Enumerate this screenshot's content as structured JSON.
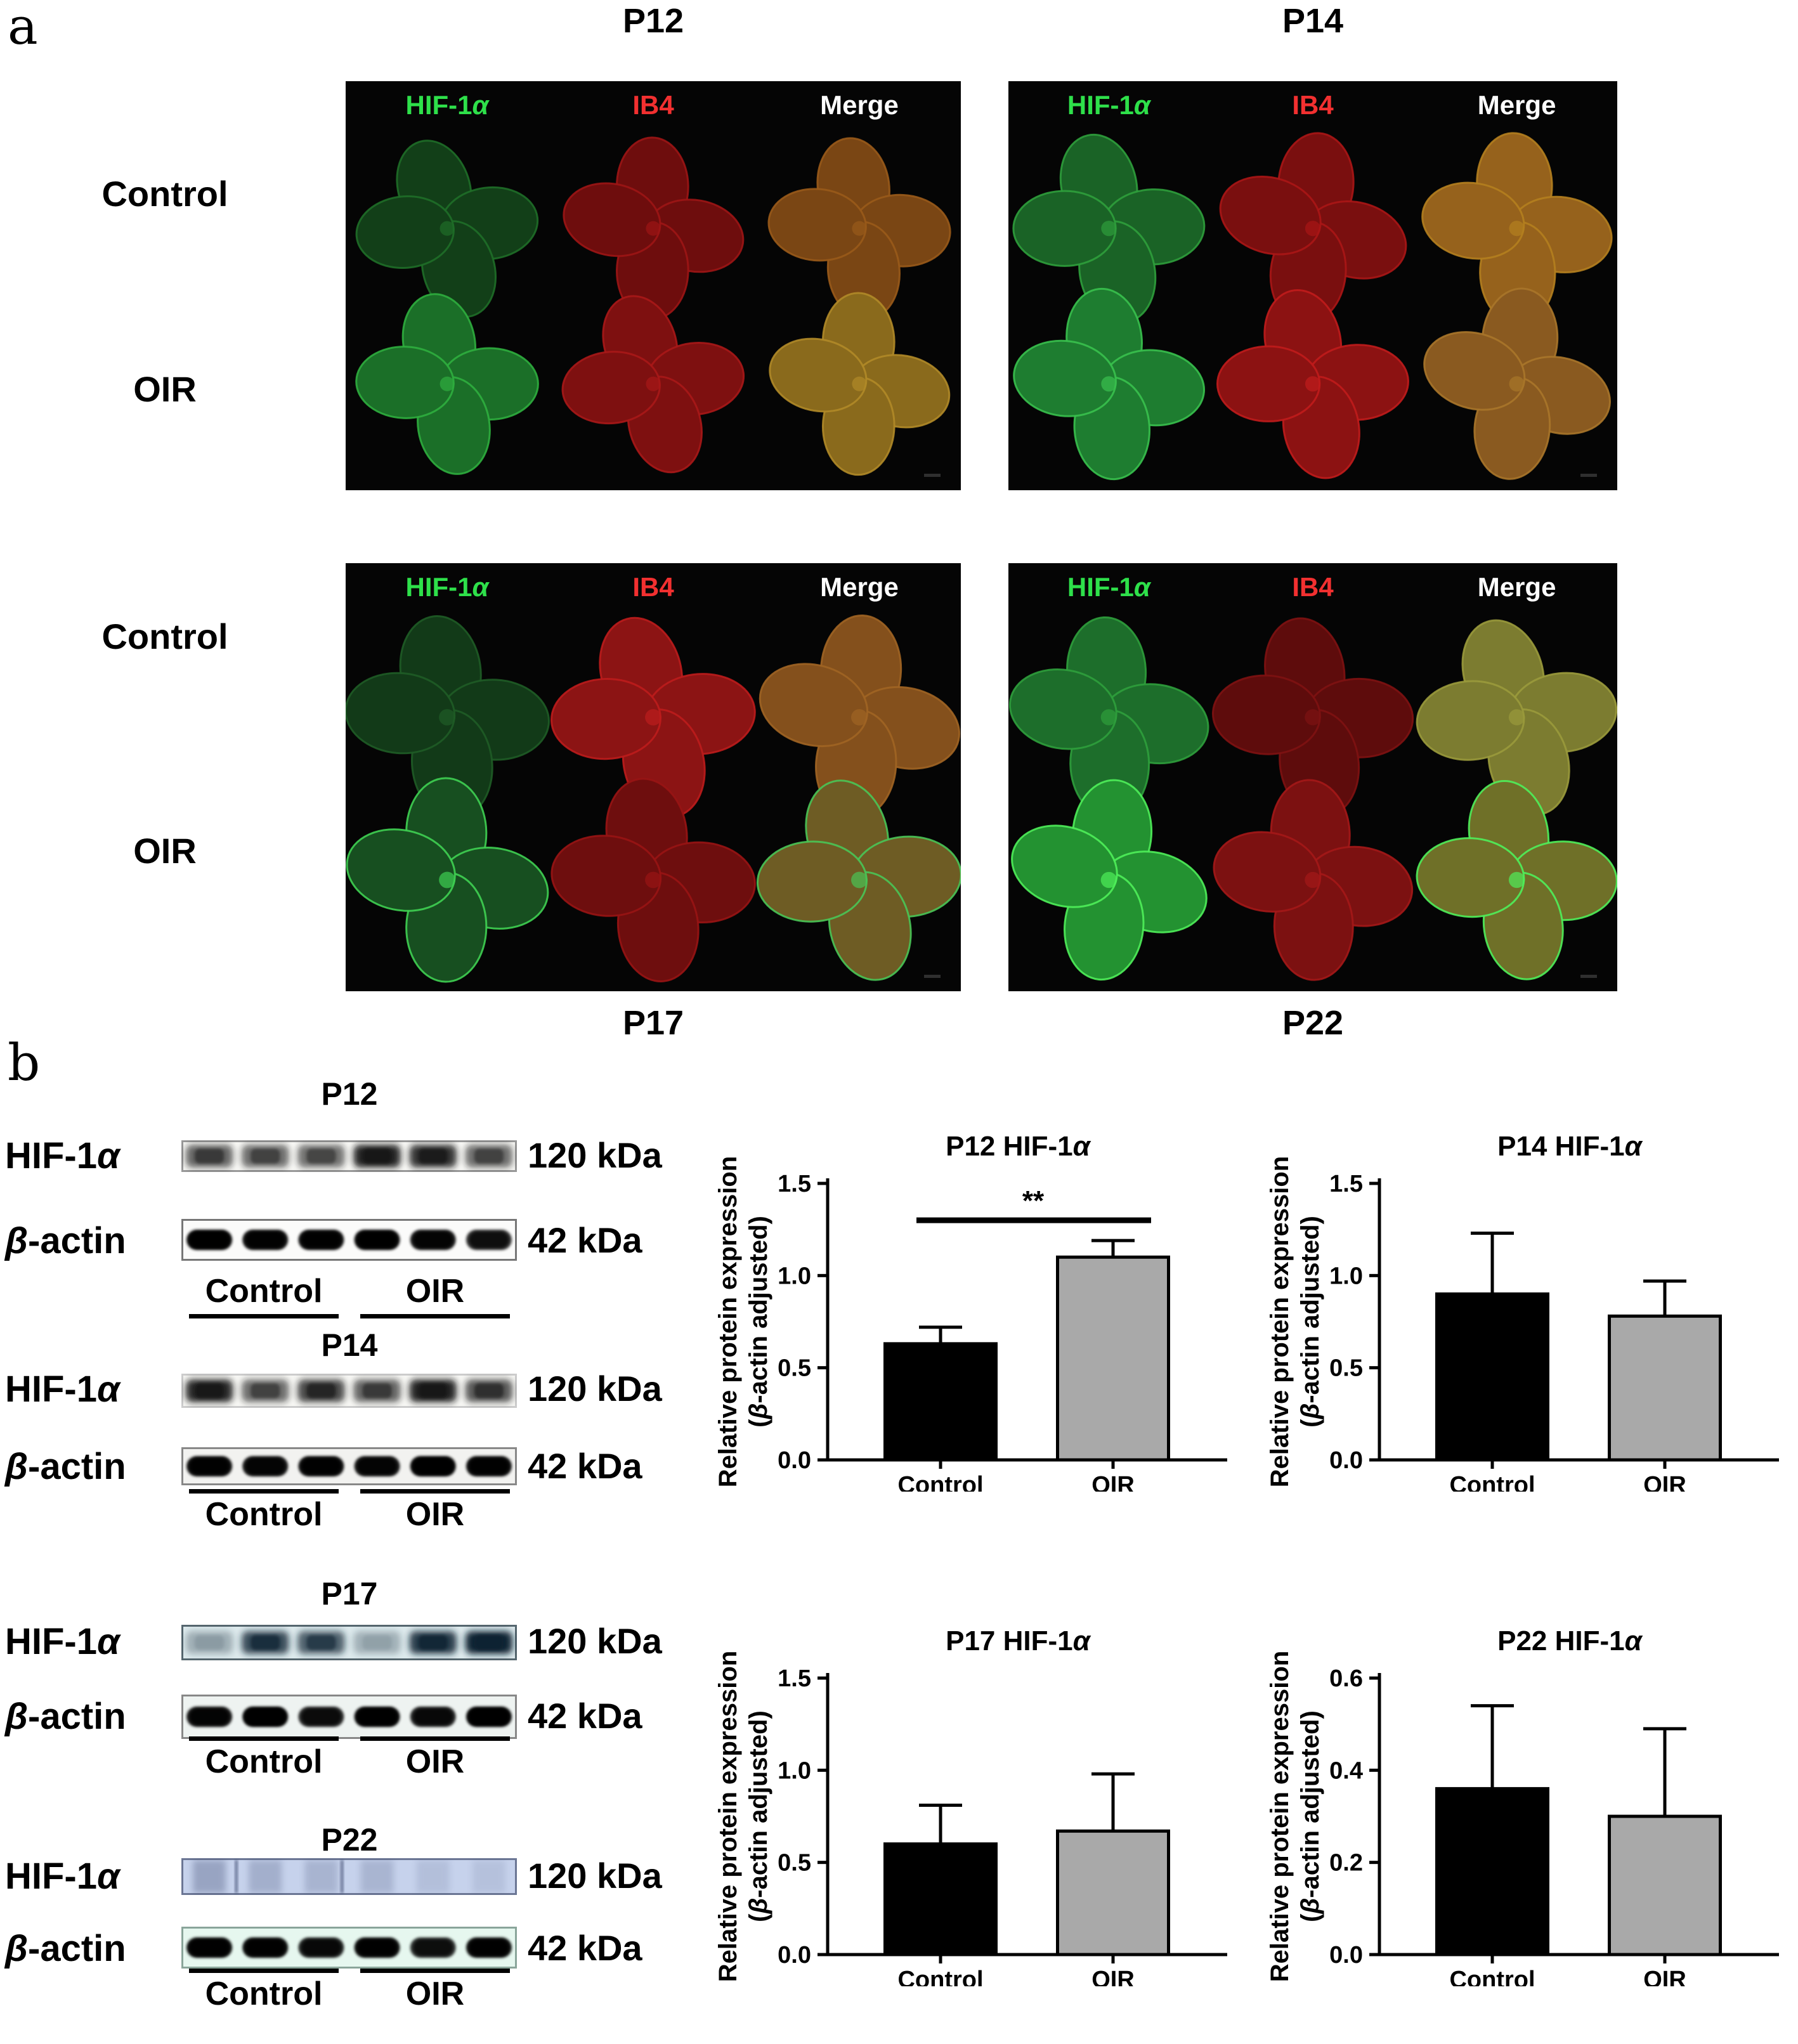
{
  "panel_a": {
    "label": "a",
    "col_headers": [
      {
        "label": "HIF-1α",
        "color": "#2ee04a"
      },
      {
        "label": "IB4",
        "color": "#f23030"
      },
      {
        "label": "Merge",
        "color": "#ffffff"
      }
    ],
    "row_labels": [
      "Control",
      "OIR"
    ],
    "groups": [
      {
        "title": "P12",
        "title_position": "top",
        "cells": [
          [
            {
              "f": "#123f18",
              "e": "#1f6e28"
            },
            {
              "f": "#6e0d0d",
              "e": "#9c1515"
            },
            {
              "f": "#7a4614",
              "e": "#995a1a"
            }
          ],
          [
            {
              "f": "#1b6f28",
              "e": "#2fae3e"
            },
            {
              "f": "#7e1010",
              "e": "#a81818"
            },
            {
              "f": "#8a6a1c",
              "e": "#b08a28"
            }
          ]
        ]
      },
      {
        "title": "P14",
        "title_position": "top",
        "cells": [
          [
            {
              "f": "#1a6326",
              "e": "#2f9e3c"
            },
            {
              "f": "#7a0f0f",
              "e": "#aa1616"
            },
            {
              "f": "#96621c",
              "e": "#b4801f"
            }
          ],
          [
            {
              "f": "#1e7d30",
              "e": "#39c14e"
            },
            {
              "f": "#8c1212",
              "e": "#c01c1c"
            },
            {
              "f": "#8a5a20",
              "e": "#a8762a"
            }
          ]
        ]
      },
      {
        "title": "P17",
        "title_position": "bottom",
        "cells": [
          [
            {
              "f": "#123a18",
              "e": "#1f5c26"
            },
            {
              "f": "#8c1414",
              "e": "#bc1c1c"
            },
            {
              "f": "#84501c",
              "e": "#a06424"
            }
          ],
          [
            {
              "f": "#174f20",
              "e": "#3fd052"
            },
            {
              "f": "#6e0e0e",
              "e": "#981414"
            },
            {
              "f": "#6e5c24",
              "e": "#49c556"
            }
          ]
        ]
      },
      {
        "title": "P22",
        "title_position": "bottom",
        "cells": [
          [
            {
              "f": "#1d6e2b",
              "e": "#2f9e3c"
            },
            {
              "f": "#5e0c0c",
              "e": "#7e1212"
            },
            {
              "f": "#7c7c30",
              "e": "#9a9a3c"
            }
          ],
          [
            {
              "f": "#239231",
              "e": "#4ff05a"
            },
            {
              "f": "#7c1111",
              "e": "#a41818"
            },
            {
              "f": "#6f7028",
              "e": "#4ff05a"
            }
          ]
        ]
      }
    ]
  },
  "panel_b": {
    "label": "b",
    "groups": [
      {
        "title": "P12",
        "hif": {
          "label": "HIF-1α",
          "kda": "120 kDa",
          "bg": "#f7f7f4",
          "border": "#999999",
          "band_color": "#141414",
          "type": "fuzzy",
          "lanes": [
            0.55,
            0.5,
            0.48,
            0.9,
            0.82,
            0.5
          ]
        },
        "actin": {
          "label": "β-actin",
          "kda": "42 kDa",
          "bg": "#fbfbfa",
          "border": "#777777",
          "band_color": "#060606",
          "type": "blob",
          "lanes": [
            0.95,
            0.88,
            0.9,
            0.93,
            0.85,
            0.72
          ]
        },
        "controls": [
          "Control",
          "OIR"
        ]
      },
      {
        "title": "P14",
        "hif": {
          "label": "HIF-1α",
          "kda": "120 kDa",
          "bg": "#f6f6f3",
          "border": "#cccccc",
          "band_color": "#151515",
          "type": "fuzzy",
          "lanes": [
            0.88,
            0.5,
            0.7,
            0.55,
            0.9,
            0.62
          ]
        },
        "actin": {
          "label": "β-actin",
          "kda": "42 kDa",
          "bg": "#f2f2f0",
          "border": "#888888",
          "band_color": "#060606",
          "type": "blob",
          "lanes": [
            0.9,
            0.85,
            0.9,
            0.85,
            0.95,
            0.9
          ]
        },
        "controls": [
          "Control",
          "OIR"
        ]
      },
      {
        "title": "P17",
        "hif": {
          "label": "HIF-1α",
          "kda": "120 kDa",
          "bg": "#dce9ec",
          "border": "#55666e",
          "band_color": "#0c2233",
          "type": "fuzzy",
          "lanes": [
            0.12,
            0.72,
            0.6,
            0.1,
            0.82,
            0.97
          ]
        },
        "actin": {
          "label": "β-actin",
          "kda": "42 kDa",
          "bg": "#eef3f1",
          "border": "#888888",
          "band_color": "#050505",
          "type": "blob",
          "lanes": [
            0.85,
            0.97,
            0.75,
            0.95,
            0.78,
            0.96
          ]
        },
        "controls": [
          "Control",
          "OIR"
        ]
      },
      {
        "title": "P22",
        "hif": {
          "label": "HIF-1α",
          "kda": "120 kDa",
          "bg": "#c6d2ec",
          "border": "#6b7694",
          "band_color": "#3c4a6e",
          "type": "streak",
          "streak_lines": [
            0.16,
            0.475
          ],
          "lanes": [
            0.55,
            0.38,
            0.3,
            0.28,
            0.12,
            0.08
          ]
        },
        "actin": {
          "label": "β-actin",
          "kda": "42 kDa",
          "bg": "#e6f7ef",
          "border": "#8aa59a",
          "band_color": "#050505",
          "type": "blob",
          "lanes": [
            0.92,
            0.9,
            0.78,
            0.9,
            0.72,
            0.9
          ]
        },
        "controls": [
          "Control",
          "OIR"
        ]
      }
    ]
  },
  "chart_data": [
    {
      "type": "bar",
      "title": "P12 HIF-1α",
      "categories": [
        "Control",
        "OIR"
      ],
      "series": [
        {
          "name": "Control",
          "value": 0.63,
          "error_top": 0.72,
          "color": "#000000"
        },
        {
          "name": "OIR",
          "value": 1.1,
          "error_top": 1.19,
          "color": "#a9a9a9"
        }
      ],
      "ylabel_line1": "Relative protein expression",
      "ylabel_line2": "(β-actin adjusted)",
      "ylim": [
        0,
        1.5
      ],
      "ytick_values": [
        0,
        0.5,
        1.0,
        1.5
      ],
      "ytick_labels": [
        "0.0",
        "0.5",
        "1.0",
        "1.5"
      ],
      "significance": {
        "label": "**",
        "y": 1.3
      }
    },
    {
      "type": "bar",
      "title": "P14 HIF-1α",
      "categories": [
        "Control",
        "OIR"
      ],
      "series": [
        {
          "name": "Control",
          "value": 0.9,
          "error_top": 1.23,
          "color": "#000000"
        },
        {
          "name": "OIR",
          "value": 0.78,
          "error_top": 0.97,
          "color": "#a9a9a9"
        }
      ],
      "ylabel_line1": "Relative protein expression",
      "ylabel_line2": "(β-actin adjusted)",
      "ylim": [
        0,
        1.5
      ],
      "ytick_values": [
        0,
        0.5,
        1.0,
        1.5
      ],
      "ytick_labels": [
        "0.0",
        "0.5",
        "1.0",
        "1.5"
      ]
    },
    {
      "type": "bar",
      "title": "P17 HIF-1α",
      "categories": [
        "Control",
        "OIR"
      ],
      "series": [
        {
          "name": "Control",
          "value": 0.6,
          "error_top": 0.81,
          "color": "#000000"
        },
        {
          "name": "OIR",
          "value": 0.67,
          "error_top": 0.98,
          "color": "#a9a9a9"
        }
      ],
      "ylabel_line1": "Relative protein expression",
      "ylabel_line2": "(β-actin adjusted)",
      "ylim": [
        0,
        1.5
      ],
      "ytick_values": [
        0,
        0.5,
        1.0,
        1.5
      ],
      "ytick_labels": [
        "0.0",
        "0.5",
        "1.0",
        "1.5"
      ]
    },
    {
      "type": "bar",
      "title": "P22 HIF-1α",
      "categories": [
        "Control",
        "OIR"
      ],
      "series": [
        {
          "name": "Control",
          "value": 0.36,
          "error_top": 0.54,
          "color": "#000000"
        },
        {
          "name": "OIR",
          "value": 0.3,
          "error_top": 0.49,
          "color": "#a9a9a9"
        }
      ],
      "ylabel_line1": "Relative protein expression",
      "ylabel_line2": "(β-actin adjusted)",
      "ylim": [
        0,
        0.6
      ],
      "ytick_values": [
        0,
        0.2,
        0.4,
        0.6
      ],
      "ytick_labels": [
        "0.0",
        "0.2",
        "0.4",
        "0.6"
      ]
    }
  ]
}
